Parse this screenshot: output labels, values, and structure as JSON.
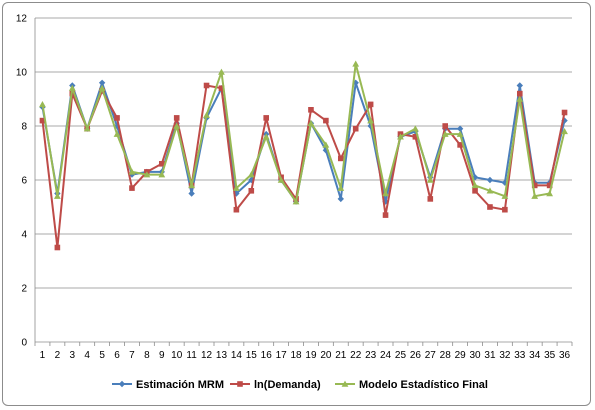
{
  "chart_data": {
    "type": "line",
    "title": "",
    "xlabel": "",
    "ylabel": "",
    "ylim": [
      0,
      12
    ],
    "yticks": [
      0,
      2,
      4,
      6,
      8,
      10,
      12
    ],
    "grid": true,
    "legend_position": "bottom",
    "x": [
      1,
      2,
      3,
      4,
      5,
      6,
      7,
      8,
      9,
      10,
      11,
      12,
      13,
      14,
      15,
      16,
      17,
      18,
      19,
      20,
      21,
      22,
      23,
      24,
      25,
      26,
      27,
      28,
      29,
      30,
      31,
      32,
      33,
      34,
      35,
      36
    ],
    "series": [
      {
        "name": "Estimación MRM",
        "color": "#4a7ebb",
        "marker": "diamond",
        "values": [
          8.7,
          5.5,
          9.5,
          7.9,
          9.6,
          8.0,
          6.2,
          6.3,
          6.3,
          8.1,
          5.5,
          8.3,
          9.4,
          5.5,
          6.0,
          7.7,
          6.0,
          5.2,
          8.1,
          7.1,
          5.3,
          9.6,
          8.0,
          5.2,
          7.6,
          7.8,
          6.1,
          7.9,
          7.9,
          6.1,
          6.0,
          5.9,
          9.5,
          5.9,
          5.9,
          8.2
        ]
      },
      {
        "name": "ln(Demanda)",
        "color": "#be4b48",
        "marker": "square",
        "values": [
          8.2,
          3.5,
          9.2,
          7.9,
          9.3,
          8.3,
          5.7,
          6.3,
          6.6,
          8.3,
          5.8,
          9.5,
          9.4,
          4.9,
          5.6,
          8.3,
          6.1,
          5.3,
          8.6,
          8.2,
          6.8,
          7.9,
          8.8,
          4.7,
          7.7,
          7.6,
          5.3,
          8.0,
          7.3,
          5.6,
          5.0,
          4.9,
          9.2,
          5.8,
          5.8,
          8.5
        ]
      },
      {
        "name": "Modelo Estadístico Final",
        "color": "#98b954",
        "marker": "triangle",
        "values": [
          8.8,
          5.4,
          9.4,
          7.9,
          9.4,
          7.7,
          6.3,
          6.2,
          6.2,
          8.0,
          5.8,
          8.4,
          10.0,
          5.7,
          6.2,
          7.6,
          6.0,
          5.2,
          8.1,
          7.3,
          5.7,
          10.3,
          8.2,
          5.5,
          7.6,
          7.9,
          6.0,
          7.7,
          7.7,
          5.8,
          5.6,
          5.4,
          9.0,
          5.4,
          5.5,
          7.8
        ]
      }
    ]
  }
}
